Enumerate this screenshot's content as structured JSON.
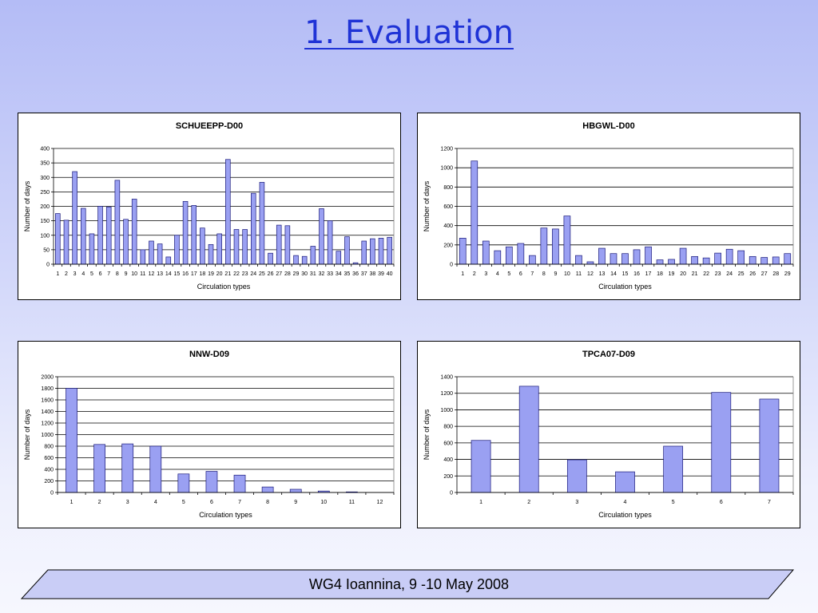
{
  "slide": {
    "title": "1. Evaluation",
    "footer": "WG4 Ioannina, 9 -10 May 2008"
  },
  "colors": {
    "bar_fill": "#9aa0f2",
    "bar_stroke": "#1a1a7a",
    "footer_fill": "#c9cdf6"
  },
  "chart_data": [
    {
      "type": "bar",
      "title": "SCHUEEPP-D00",
      "xlabel": "Circulation types",
      "ylabel": "Number of days",
      "ylim": [
        0,
        400
      ],
      "yticks": [
        0,
        50,
        100,
        150,
        200,
        250,
        300,
        350,
        400
      ],
      "grid": true,
      "categories": [
        "1",
        "2",
        "3",
        "4",
        "5",
        "6",
        "7",
        "8",
        "9",
        "10",
        "11",
        "12",
        "13",
        "14",
        "15",
        "16",
        "17",
        "18",
        "19",
        "20",
        "21",
        "22",
        "23",
        "24",
        "25",
        "26",
        "27",
        "28",
        "29",
        "30",
        "31",
        "32",
        "33",
        "34",
        "35",
        "36",
        "37",
        "38",
        "39",
        "40"
      ],
      "values": [
        175,
        152,
        320,
        193,
        105,
        200,
        198,
        290,
        155,
        225,
        50,
        80,
        70,
        25,
        100,
        217,
        203,
        125,
        68,
        105,
        362,
        120,
        120,
        245,
        283,
        38,
        135,
        133,
        30,
        27,
        62,
        192,
        150,
        45,
        95,
        5,
        80,
        88,
        90,
        93
      ]
    },
    {
      "type": "bar",
      "title": "HBGWL-D00",
      "xlabel": "Circulation types",
      "ylabel": "Number of days",
      "ylim": [
        0,
        1200
      ],
      "yticks": [
        0,
        200,
        400,
        600,
        800,
        1000,
        1200
      ],
      "grid": true,
      "categories": [
        "1",
        "2",
        "3",
        "4",
        "5",
        "6",
        "7",
        "8",
        "9",
        "10",
        "11",
        "12",
        "13",
        "14",
        "15",
        "16",
        "17",
        "18",
        "19",
        "20",
        "21",
        "22",
        "23",
        "24",
        "25",
        "26",
        "27",
        "28",
        "29"
      ],
      "values": [
        270,
        1070,
        240,
        140,
        180,
        215,
        90,
        375,
        365,
        500,
        90,
        25,
        165,
        110,
        110,
        150,
        180,
        45,
        50,
        165,
        80,
        65,
        115,
        155,
        140,
        80,
        70,
        75,
        110
      ]
    },
    {
      "type": "bar",
      "title": "NNW-D09",
      "xlabel": "Circulation types",
      "ylabel": "Number of days",
      "ylim": [
        0,
        2000
      ],
      "yticks": [
        0,
        200,
        400,
        600,
        800,
        1000,
        1200,
        1400,
        1600,
        1800,
        2000
      ],
      "grid": true,
      "categories": [
        "1",
        "2",
        "3",
        "4",
        "5",
        "6",
        "7",
        "8",
        "9",
        "10",
        "11",
        "12"
      ],
      "values": [
        1800,
        830,
        840,
        800,
        320,
        365,
        300,
        95,
        55,
        25,
        10,
        0
      ]
    },
    {
      "type": "bar",
      "title": "TPCA07-D09",
      "xlabel": "Circulation types",
      "ylabel": "Number of days",
      "ylim": [
        0,
        1400
      ],
      "yticks": [
        0,
        200,
        400,
        600,
        800,
        1000,
        1200,
        1400
      ],
      "grid": true,
      "categories": [
        "1",
        "2",
        "3",
        "4",
        "5",
        "6",
        "7"
      ],
      "values": [
        630,
        1285,
        395,
        250,
        560,
        1210,
        1130
      ]
    }
  ]
}
